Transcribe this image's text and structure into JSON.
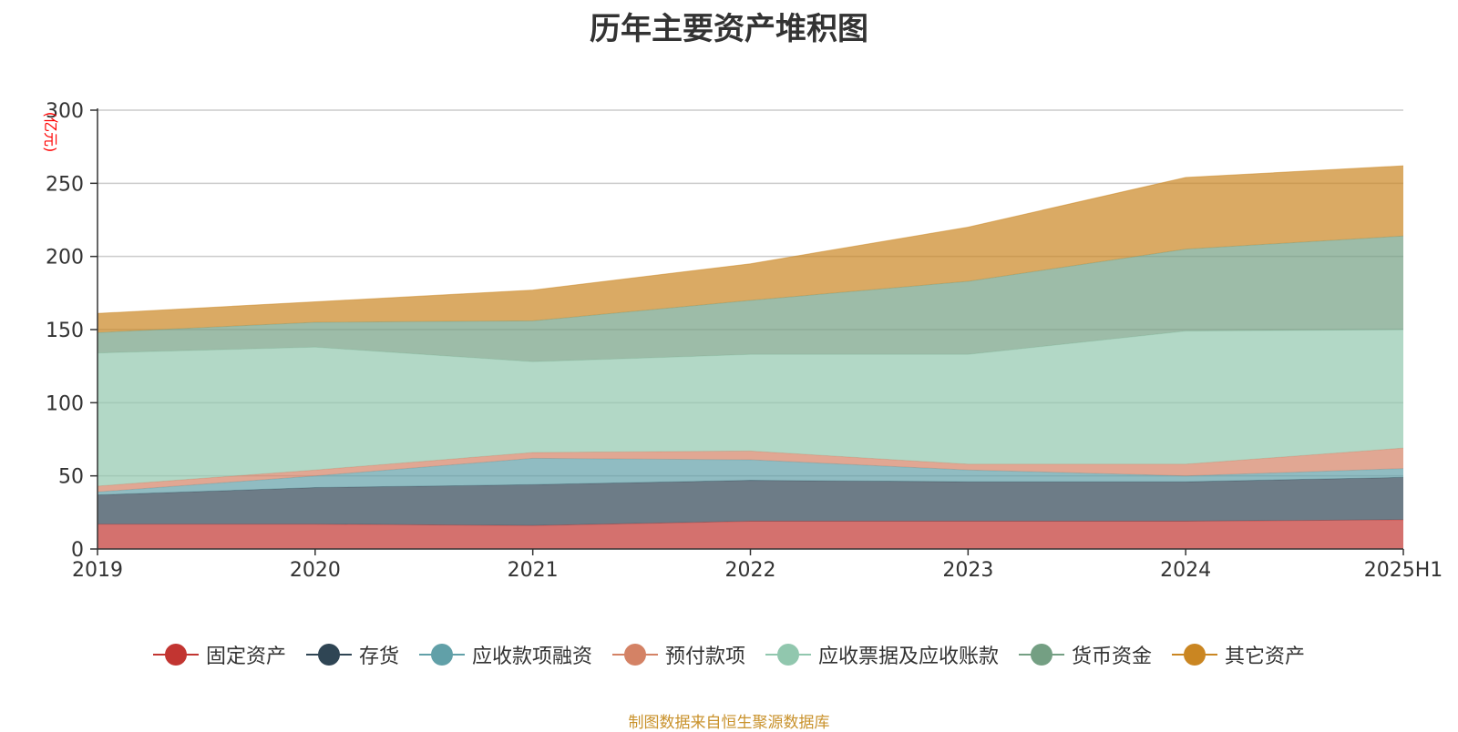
{
  "chart_data": {
    "type": "area",
    "stacked": true,
    "title": "历年主要资产堆积图",
    "ylabel": "(亿元)",
    "xlabel": "",
    "categories": [
      "2019",
      "2020",
      "2021",
      "2022",
      "2023",
      "2024",
      "2025H1"
    ],
    "ylim": [
      0,
      300
    ],
    "yticks": [
      0,
      50,
      100,
      150,
      200,
      250,
      300
    ],
    "grid": true,
    "legend_position": "bottom",
    "series": [
      {
        "name": "固定资产",
        "color": "#c23531",
        "values": [
          17,
          17,
          16,
          19,
          19,
          19,
          20
        ]
      },
      {
        "name": "存货",
        "color": "#2f4554",
        "values": [
          20,
          25,
          28,
          28,
          27,
          27,
          29
        ]
      },
      {
        "name": "应收款项融资",
        "color": "#61a0a8",
        "values": [
          2,
          8,
          18,
          14,
          8,
          4,
          6
        ]
      },
      {
        "name": "预付款项",
        "color": "#d48265",
        "values": [
          4,
          4,
          4,
          6,
          4,
          8,
          14
        ]
      },
      {
        "name": "应收票据及应收账款",
        "color": "#91c7ae",
        "values": [
          91,
          84,
          62,
          66,
          75,
          91,
          81
        ]
      },
      {
        "name": "货币资金",
        "color": "#749f83",
        "values": [
          14,
          17,
          28,
          37,
          50,
          56,
          64
        ]
      },
      {
        "name": "其它资产",
        "color": "#ca8622",
        "values": [
          13,
          14,
          21,
          25,
          37,
          49,
          48
        ]
      }
    ]
  },
  "footer": {
    "source": "制图数据来自恒生聚源数据库"
  }
}
